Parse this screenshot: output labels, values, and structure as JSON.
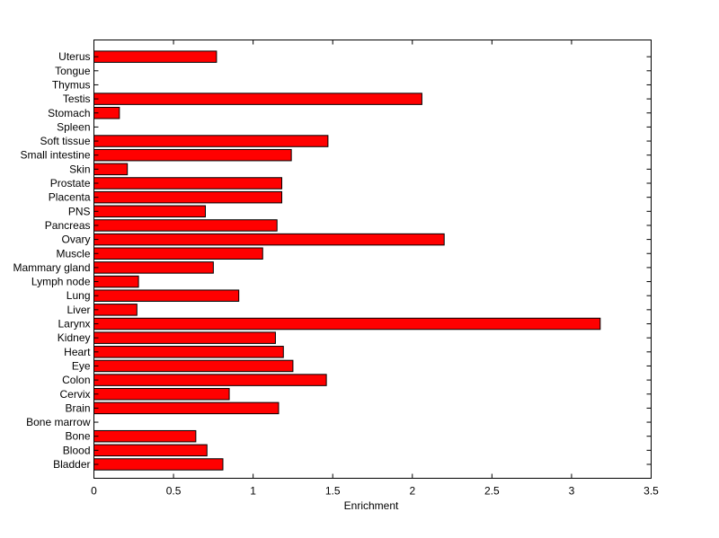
{
  "chart_data": {
    "type": "bar",
    "orientation": "horizontal",
    "categories": [
      "Bladder",
      "Blood",
      "Bone",
      "Bone marrow",
      "Brain",
      "Cervix",
      "Colon",
      "Eye",
      "Heart",
      "Kidney",
      "Larynx",
      "Liver",
      "Lung",
      "Lymph node",
      "Mammary gland",
      "Muscle",
      "Ovary",
      "Pancreas",
      "PNS",
      "Placenta",
      "Prostate",
      "Skin",
      "Small intestine",
      "Soft tissue",
      "Spleen",
      "Stomach",
      "Testis",
      "Thymus",
      "Tongue",
      "Uterus"
    ],
    "values": [
      0.81,
      0.71,
      0.64,
      0,
      1.16,
      0.85,
      1.46,
      1.25,
      1.19,
      1.14,
      3.18,
      0.27,
      0.91,
      0.28,
      0.75,
      1.06,
      2.2,
      1.15,
      0.7,
      1.18,
      1.18,
      0.21,
      1.24,
      1.47,
      0,
      0.16,
      2.06,
      0,
      0,
      0.77
    ],
    "xlabel": "Enrichment",
    "ylabel": "",
    "xlim": [
      0,
      3.5
    ],
    "xticks": [
      "0",
      "0.5",
      "1",
      "1.5",
      "2",
      "2.5",
      "3",
      "3.5"
    ],
    "grid": false,
    "bar_color": "#ff0000"
  }
}
